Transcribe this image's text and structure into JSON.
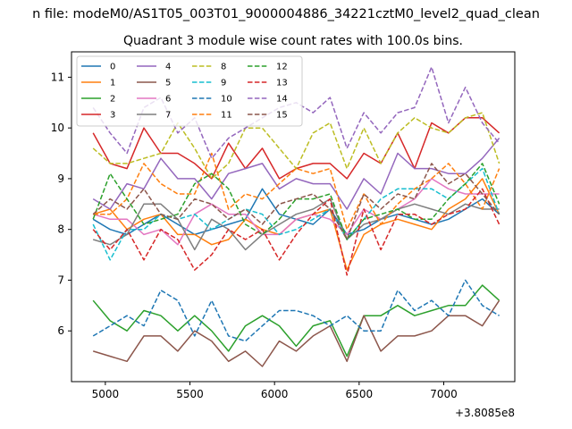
{
  "suptitle": "n file: modeM0/AS1T05_003T01_9000004886_34221cztM0_level2_quad_clean",
  "chart_data": {
    "type": "line",
    "title": "Quadrant 3 module wise count rates with 100.0s bins.",
    "xlabel": "",
    "ylabel": "",
    "x_offset_label": "+3.8085e8",
    "xlim": [
      4800,
      7420
    ],
    "ylim": [
      5.0,
      11.5
    ],
    "x_ticks": [
      5000,
      5500,
      6000,
      6500,
      7000
    ],
    "y_ticks": [
      6,
      7,
      8,
      9,
      10,
      11
    ],
    "legend_position": "upper-left",
    "x": [
      4928,
      5028,
      5128,
      5228,
      5328,
      5428,
      5528,
      5628,
      5728,
      5828,
      5928,
      6028,
      6128,
      6228,
      6328,
      6428,
      6528,
      6628,
      6728,
      6828,
      6928,
      7028,
      7128,
      7228,
      7328
    ],
    "series": [
      {
        "name": "0",
        "color": "#1f77b4",
        "dash": "solid",
        "values": [
          8.2,
          8.0,
          7.9,
          8.1,
          8.3,
          8.1,
          7.9,
          8.0,
          8.1,
          8.2,
          8.8,
          8.3,
          8.2,
          8.1,
          8.4,
          7.9,
          8.0,
          8.2,
          8.3,
          8.2,
          8.1,
          8.2,
          8.4,
          8.6,
          8.3
        ]
      },
      {
        "name": "1",
        "color": "#ff7f0e",
        "dash": "solid",
        "values": [
          8.3,
          8.4,
          8.0,
          8.2,
          8.3,
          7.9,
          7.9,
          7.7,
          7.8,
          8.2,
          8.0,
          7.9,
          8.2,
          8.3,
          8.4,
          7.2,
          7.9,
          8.1,
          8.2,
          8.1,
          8.0,
          8.4,
          8.6,
          9.0,
          8.3
        ]
      },
      {
        "name": "2",
        "color": "#2ca02c",
        "dash": "solid",
        "values": [
          6.6,
          6.2,
          6.0,
          6.4,
          6.3,
          6.0,
          6.3,
          6.0,
          5.6,
          6.1,
          6.3,
          6.1,
          5.7,
          6.1,
          6.2,
          5.5,
          6.3,
          6.3,
          6.5,
          6.3,
          6.4,
          6.5,
          6.5,
          6.9,
          6.6
        ]
      },
      {
        "name": "3",
        "color": "#d62728",
        "dash": "solid",
        "values": [
          9.9,
          9.3,
          9.2,
          10.0,
          9.5,
          9.5,
          9.3,
          9.0,
          9.7,
          9.2,
          9.6,
          9.0,
          9.2,
          9.3,
          9.3,
          9.0,
          9.5,
          9.3,
          9.9,
          9.2,
          10.1,
          9.9,
          10.2,
          10.2,
          9.9
        ]
      },
      {
        "name": "4",
        "color": "#9467bd",
        "dash": "solid",
        "values": [
          8.6,
          8.4,
          8.9,
          8.8,
          9.4,
          9.0,
          9.0,
          8.6,
          9.1,
          9.2,
          9.3,
          8.8,
          9.0,
          8.9,
          8.9,
          8.4,
          9.0,
          8.7,
          9.5,
          9.2,
          9.2,
          9.1,
          9.1,
          9.4,
          9.8
        ]
      },
      {
        "name": "5",
        "color": "#8c564b",
        "dash": "solid",
        "values": [
          5.6,
          5.5,
          5.4,
          5.9,
          5.9,
          5.6,
          6.0,
          5.8,
          5.4,
          5.6,
          5.3,
          5.8,
          5.6,
          5.9,
          6.1,
          5.4,
          6.3,
          5.6,
          5.9,
          5.9,
          6.0,
          6.3,
          6.3,
          6.1,
          6.6
        ]
      },
      {
        "name": "6",
        "color": "#e377c2",
        "dash": "solid",
        "values": [
          8.3,
          8.2,
          8.2,
          7.9,
          8.0,
          7.7,
          8.3,
          8.5,
          8.3,
          8.3,
          7.9,
          7.9,
          8.2,
          8.3,
          8.2,
          7.9,
          8.4,
          8.2,
          8.4,
          8.6,
          9.0,
          8.8,
          8.7,
          8.7,
          8.7
        ]
      },
      {
        "name": "7",
        "color": "#7f7f7f",
        "dash": "solid",
        "values": [
          7.8,
          7.7,
          7.9,
          8.5,
          8.5,
          8.2,
          7.6,
          8.2,
          8.0,
          7.6,
          7.9,
          8.1,
          8.3,
          8.4,
          8.6,
          7.8,
          8.1,
          8.2,
          8.4,
          8.5,
          8.4,
          8.3,
          8.5,
          8.4,
          8.4
        ]
      },
      {
        "name": "8",
        "color": "#bcbd22",
        "dash": "dashed",
        "values": [
          9.6,
          9.3,
          9.3,
          9.4,
          9.5,
          10.1,
          9.6,
          9.0,
          9.3,
          10.0,
          10.0,
          9.6,
          9.2,
          9.9,
          10.1,
          9.2,
          10.0,
          9.3,
          9.9,
          10.2,
          10.0,
          9.9,
          10.2,
          10.3,
          9.3
        ]
      },
      {
        "name": "9",
        "color": "#17becf",
        "dash": "dashed",
        "values": [
          8.1,
          7.4,
          8.0,
          8.0,
          8.3,
          8.2,
          8.3,
          8.0,
          8.2,
          8.4,
          8.3,
          7.9,
          8.0,
          8.2,
          8.4,
          7.8,
          8.2,
          8.6,
          8.8,
          8.8,
          8.8,
          8.6,
          8.9,
          9.2,
          8.3
        ]
      },
      {
        "name": "10",
        "color": "#1f77b4",
        "dash": "dashed",
        "values": [
          5.9,
          6.1,
          6.3,
          6.1,
          6.8,
          6.6,
          5.9,
          6.6,
          5.9,
          5.8,
          6.1,
          6.4,
          6.4,
          6.3,
          6.1,
          6.3,
          6.0,
          6.0,
          6.8,
          6.4,
          6.6,
          6.3,
          7.0,
          6.5,
          6.3
        ]
      },
      {
        "name": "11",
        "color": "#ff7f0e",
        "dash": "dashed",
        "values": [
          8.3,
          8.3,
          8.6,
          9.3,
          8.9,
          8.7,
          8.7,
          9.5,
          8.4,
          8.7,
          8.6,
          8.9,
          9.2,
          9.1,
          9.2,
          8.0,
          8.7,
          8.1,
          8.5,
          8.8,
          9.0,
          9.3,
          8.9,
          8.4,
          9.2
        ]
      },
      {
        "name": "12",
        "color": "#2ca02c",
        "dash": "dashed",
        "values": [
          8.2,
          9.1,
          8.6,
          8.1,
          8.2,
          8.3,
          8.9,
          9.1,
          8.8,
          8.1,
          7.9,
          8.2,
          8.6,
          8.6,
          8.7,
          7.8,
          8.2,
          8.3,
          8.4,
          8.2,
          8.2,
          8.6,
          8.9,
          9.3,
          8.5
        ]
      },
      {
        "name": "13",
        "color": "#d62728",
        "dash": "dashed",
        "values": [
          8.0,
          7.6,
          8.0,
          7.4,
          8.0,
          7.8,
          7.2,
          7.5,
          8.0,
          7.8,
          8.0,
          7.4,
          7.9,
          8.3,
          8.6,
          7.1,
          8.4,
          7.6,
          8.3,
          8.3,
          8.1,
          8.3,
          8.4,
          8.8,
          8.1
        ]
      },
      {
        "name": "14",
        "color": "#9467bd",
        "dash": "dashed",
        "values": [
          10.4,
          9.9,
          9.5,
          10.4,
          10.6,
          9.9,
          10.2,
          9.4,
          9.8,
          10.0,
          10.2,
          10.4,
          10.5,
          10.3,
          10.6,
          9.6,
          10.3,
          9.9,
          10.3,
          10.4,
          11.2,
          10.1,
          10.8,
          10.1,
          9.7
        ]
      },
      {
        "name": "15",
        "color": "#8c564b",
        "dash": "dashed",
        "values": [
          8.3,
          8.6,
          8.4,
          8.8,
          8.3,
          8.2,
          8.6,
          8.5,
          8.2,
          8.4,
          8.1,
          8.5,
          8.6,
          8.7,
          8.4,
          7.8,
          8.7,
          8.4,
          8.7,
          8.6,
          9.3,
          8.9,
          9.1,
          8.7,
          8.3
        ]
      }
    ]
  }
}
